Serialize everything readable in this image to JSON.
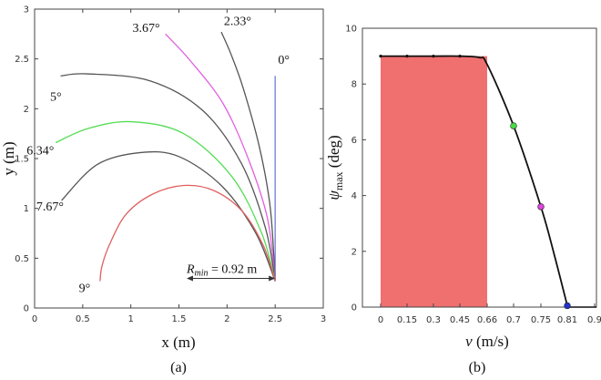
{
  "chart_data": [
    {
      "type": "line",
      "panel_label": "(a)",
      "xlabel": "x (m)",
      "ylabel": "y (m)",
      "xlim": [
        0,
        3
      ],
      "ylim": [
        0,
        3
      ],
      "xticks": [
        0,
        0.5,
        1,
        1.5,
        2,
        2.5,
        3
      ],
      "xtick_labels": [
        "0",
        "0.5",
        "1",
        "1.5",
        "2",
        "2.5",
        "3"
      ],
      "yticks": [
        0,
        0.5,
        1,
        1.5,
        2,
        2.5,
        3
      ],
      "ytick_labels": [
        "0",
        "0.5",
        "1",
        "1.5",
        "2",
        "2.5",
        "3"
      ],
      "grid": false,
      "series": [
        {
          "name": "0°",
          "color": "#6f7fd6",
          "points": [
            [
              2.5,
              0.27
            ],
            [
              2.5,
              2.33
            ]
          ]
        },
        {
          "name": "2.33°",
          "color": "#555555",
          "points": [
            [
              2.5,
              0.27
            ],
            [
              2.45,
              1.0
            ],
            [
              2.34,
              1.6
            ],
            [
              2.17,
              2.2
            ],
            [
              2.04,
              2.55
            ],
            [
              1.94,
              2.77
            ]
          ]
        },
        {
          "name": "3.67°",
          "color": "#e060e0",
          "points": [
            [
              2.5,
              0.27
            ],
            [
              2.42,
              0.9
            ],
            [
              2.22,
              1.5
            ],
            [
              1.96,
              2.05
            ],
            [
              1.62,
              2.48
            ],
            [
              1.36,
              2.75
            ]
          ]
        },
        {
          "name": "5°",
          "color": "#555555",
          "points": [
            [
              2.5,
              0.27
            ],
            [
              2.4,
              0.8
            ],
            [
              2.15,
              1.45
            ],
            [
              1.75,
              1.98
            ],
            [
              1.2,
              2.28
            ],
            [
              0.55,
              2.35
            ],
            [
              0.27,
              2.33
            ]
          ]
        },
        {
          "name": "6.34°",
          "color": "#55dd55",
          "points": [
            [
              2.5,
              0.27
            ],
            [
              2.36,
              0.75
            ],
            [
              2.05,
              1.32
            ],
            [
              1.55,
              1.75
            ],
            [
              1.0,
              1.87
            ],
            [
              0.55,
              1.8
            ],
            [
              0.22,
              1.66
            ]
          ]
        },
        {
          "name": "7.67°",
          "color": "#555555",
          "points": [
            [
              2.5,
              0.27
            ],
            [
              2.3,
              0.75
            ],
            [
              1.95,
              1.22
            ],
            [
              1.5,
              1.52
            ],
            [
              1.1,
              1.56
            ],
            [
              0.65,
              1.44
            ],
            [
              0.28,
              1.08
            ]
          ]
        },
        {
          "name": "9°",
          "color": "#e06060",
          "points": [
            [
              2.5,
              0.27
            ],
            [
              2.38,
              0.62
            ],
            [
              2.16,
              0.97
            ],
            [
              1.86,
              1.18
            ],
            [
              1.55,
              1.23
            ],
            [
              1.22,
              1.14
            ],
            [
              0.95,
              0.94
            ],
            [
              0.78,
              0.64
            ],
            [
              0.7,
              0.42
            ],
            [
              0.68,
              0.27
            ]
          ]
        }
      ],
      "labels": [
        {
          "text": "0°",
          "x": 2.59,
          "y": 2.45
        },
        {
          "text": "2.33°",
          "x": 2.11,
          "y": 2.84
        },
        {
          "text": "3.67°",
          "x": 1.16,
          "y": 2.77
        },
        {
          "text": "5°",
          "x": 0.22,
          "y": 2.08
        },
        {
          "text": "6.34°",
          "x": 0.06,
          "y": 1.54
        },
        {
          "text": "7.67°",
          "x": 0.16,
          "y": 0.98
        },
        {
          "text": "9°",
          "x": 0.52,
          "y": 0.16
        }
      ],
      "annotation": {
        "symbol": "R",
        "subscript": "min",
        "value": " = 0.92 m",
        "arrow_x": [
          1.58,
          2.5
        ],
        "y": 0.27
      }
    },
    {
      "type": "area",
      "panel_label": "(b)",
      "xlabel": "v (m/s)",
      "ylabel": "ψmax (deg)",
      "ylim": [
        0,
        10
      ],
      "xticks": [
        0,
        0.15,
        0.3,
        0.45,
        0.66,
        0.7,
        0.75,
        0.81,
        0.9
      ],
      "xtick_labels": [
        "0",
        "0.15",
        "0.3",
        "0.45",
        "0.66",
        "0.7",
        "0.75",
        "0.81",
        "0.9"
      ],
      "yticks": [
        0,
        2,
        4,
        6,
        8,
        10
      ],
      "ytick_labels": [
        "0",
        "2",
        "4",
        "6",
        "8",
        "10"
      ],
      "grid": false,
      "shaded_region": {
        "x": [
          0,
          0.66
        ],
        "y": [
          0,
          9
        ],
        "color": "#f07070"
      },
      "curve": {
        "x": [
          0,
          0.15,
          0.3,
          0.45,
          0.6,
          0.66,
          0.7,
          0.75,
          0.78,
          0.81
        ],
        "y": [
          9,
          9,
          9,
          9,
          8.95,
          8.7,
          6.5,
          3.6,
          1.9,
          0.05
        ]
      },
      "markers": [
        {
          "x": 0.7,
          "y": 6.5,
          "color": "#44dd44"
        },
        {
          "x": 0.75,
          "y": 3.6,
          "color": "#dd44dd"
        },
        {
          "x": 0.81,
          "y": 0.05,
          "color": "#2233cc"
        }
      ]
    }
  ]
}
